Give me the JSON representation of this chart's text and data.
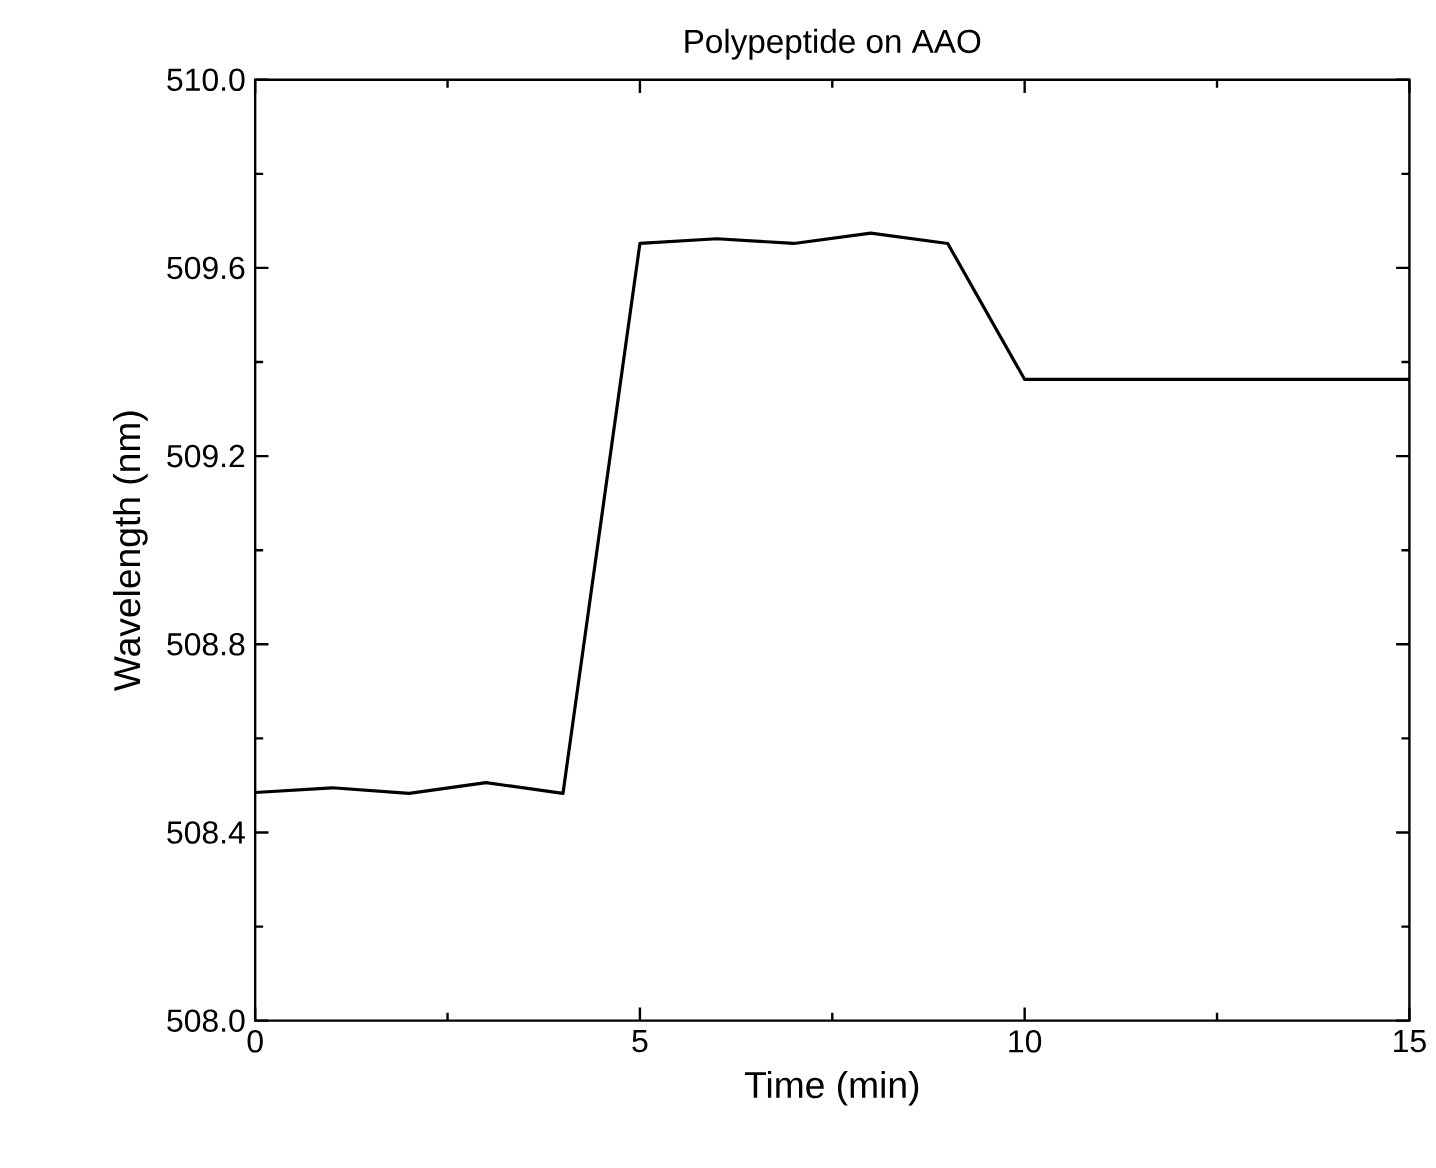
{
  "chart_data": {
    "type": "line",
    "title": "Polypeptide on AAO",
    "xlabel": "Time (min)",
    "ylabel": "Wavelength (nm)",
    "x": [
      0,
      1,
      2,
      3,
      4,
      5,
      6,
      7,
      8,
      9,
      10,
      11,
      12,
      13,
      14,
      15
    ],
    "series": [
      {
        "color": "#000000",
        "values": [
          508.485,
          508.495,
          508.483,
          508.506,
          508.483,
          509.652,
          509.662,
          509.652,
          509.674,
          509.652,
          509.363,
          509.363,
          509.363,
          509.363,
          509.363,
          509.363
        ]
      }
    ],
    "xlim": [
      0,
      15
    ],
    "ylim": [
      508.0,
      510.0
    ],
    "xticks": [
      0,
      5,
      10,
      15
    ],
    "yticks": [
      {
        "value": 508.0,
        "label": "508.0"
      },
      {
        "value": 508.4,
        "label": "508.4"
      },
      {
        "value": 508.8,
        "label": "508.8"
      },
      {
        "value": 509.2,
        "label": "509.2"
      },
      {
        "value": 509.6,
        "label": "509.6"
      },
      {
        "value": 510.0,
        "label": "510.0"
      }
    ],
    "grid": false,
    "marker": "none",
    "line_style": "solid"
  }
}
